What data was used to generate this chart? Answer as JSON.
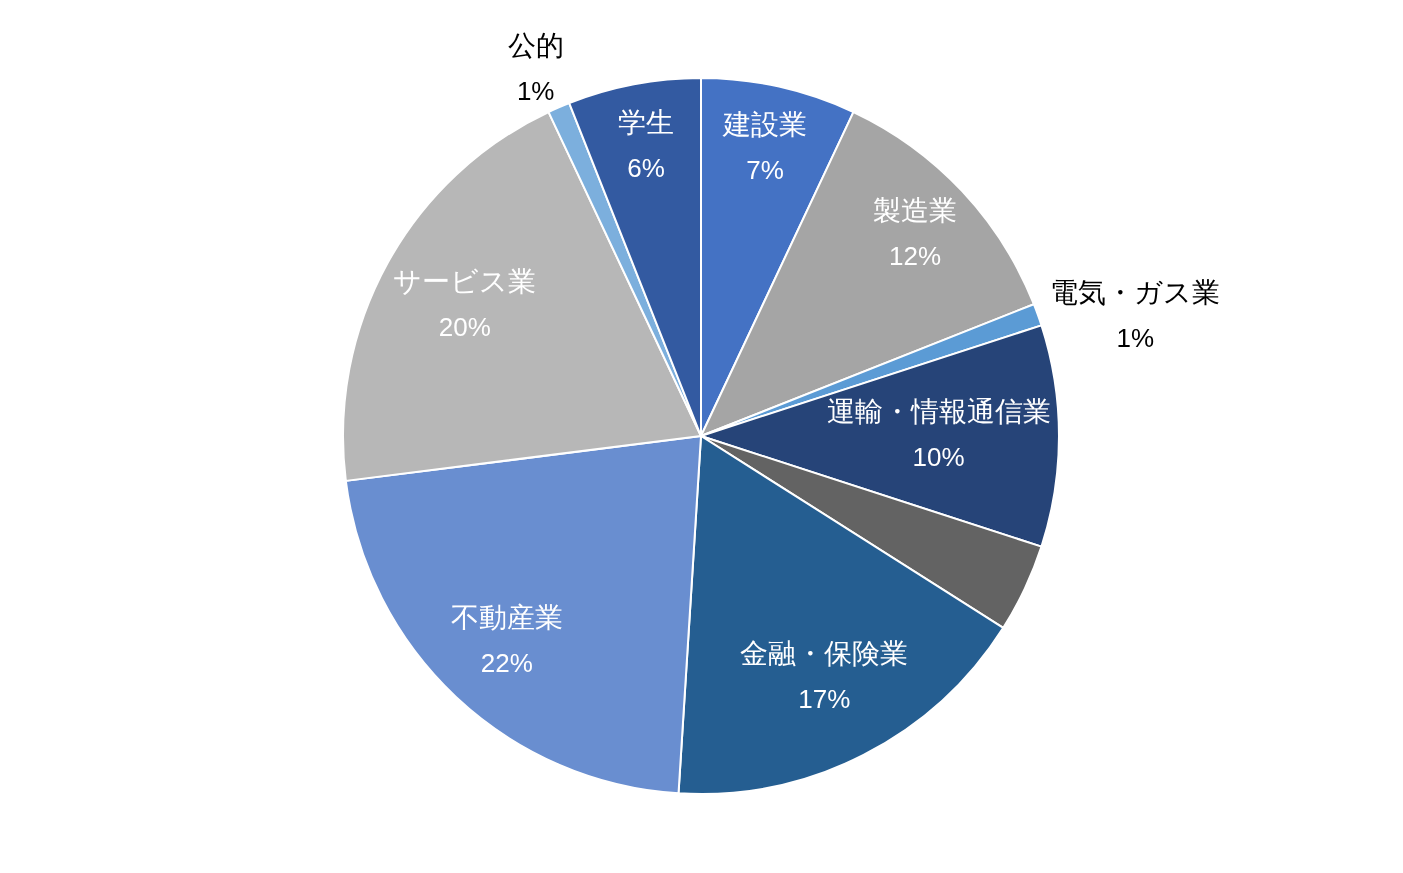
{
  "chart_data": {
    "type": "pie",
    "categories": [
      "建設業",
      "製造業",
      "電気・ガス業",
      "運輸・情報通信業",
      null,
      "金融・保険業",
      "不動産業",
      "サービス業",
      "公的",
      "学生"
    ],
    "values": [
      7,
      12,
      1,
      10,
      4,
      17,
      22,
      20,
      1,
      6
    ],
    "colors": [
      "#4472c4",
      "#a5a5a5",
      "#5b9bd5",
      "#264478",
      "#636363",
      "#255e91",
      "#698ed0",
      "#b7b7b7",
      "#7cafdd",
      "#335aa1"
    ],
    "value_labels": [
      "7%",
      "12%",
      "1%",
      "10%",
      null,
      "17%",
      "22%",
      "20%",
      "1%",
      "6%"
    ],
    "legend": false
  }
}
